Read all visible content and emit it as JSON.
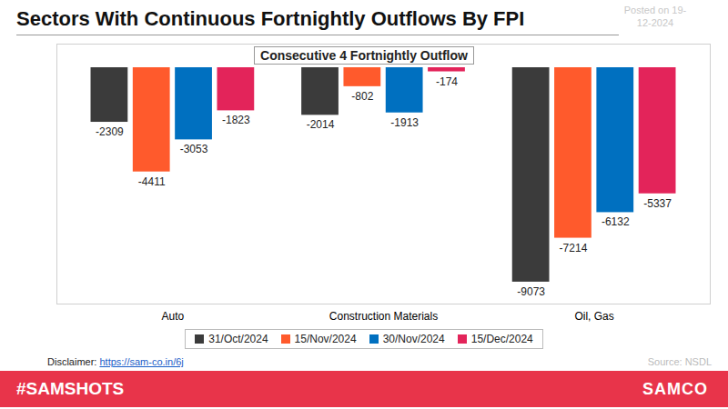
{
  "chart_data": {
    "type": "bar",
    "title": "Sectors With Continuous Fortnightly Outflows By FPI",
    "subtitle": "Consecutive 4 Fortnightly Outflow",
    "categories": [
      "Auto",
      "Construction Materials",
      "Oil, Gas"
    ],
    "series": [
      {
        "name": "31/Oct/2024",
        "color": "#3b3b3b",
        "values": [
          -2309,
          -2014,
          -9073
        ]
      },
      {
        "name": "15/Nov/2024",
        "color": "#ff5a2c",
        "values": [
          -4411,
          -802,
          -7214
        ]
      },
      {
        "name": "30/Nov/2024",
        "color": "#0070c0",
        "values": [
          -3053,
          -1913,
          -6132
        ]
      },
      {
        "name": "15/Dec/2024",
        "color": "#e3245a",
        "values": [
          -1823,
          -174,
          -5337
        ]
      }
    ],
    "ylim": [
      -10000,
      1000
    ],
    "yticks": [],
    "grid": false,
    "legend": "bottom",
    "data_labels": true,
    "tick_labels": "x",
    "annotations": {
      "posted": "Posted on 19-12-2024",
      "disclaimer": "Disclaimer:",
      "disclaimer_link": "https://sam-co.in/6j",
      "source": "Source: NSDL",
      "hashtag": "#SAMSHOTS",
      "brand": "SAMCO"
    }
  }
}
